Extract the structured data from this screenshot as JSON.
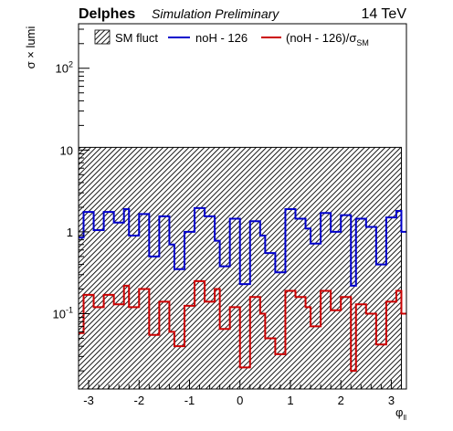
{
  "header": {
    "experiment": "Delphes",
    "status": "Simulation Preliminary",
    "energy": "14 TeV"
  },
  "chart_data": {
    "type": "histogram",
    "xlabel": "φ",
    "xlabel_sub": "ll",
    "ylabel": "σ × lumi",
    "log_y": true,
    "xlim": [
      -3.2,
      3.3
    ],
    "ylim": [
      0.012,
      350
    ],
    "x_ticks": [
      -3,
      -2,
      -1,
      0,
      1,
      2,
      3
    ],
    "x_tick_labels": [
      "-3",
      "-2",
      "-1",
      "0",
      "1",
      "2",
      "3"
    ],
    "y_ticks": [
      0.1,
      1,
      10,
      100
    ],
    "y_tick_labels": [
      {
        "base": "10",
        "sup": "-1"
      },
      {
        "base": "1",
        "sup": ""
      },
      {
        "base": "10",
        "sup": ""
      },
      {
        "base": "10",
        "sup": "2"
      }
    ],
    "legend": {
      "placement": "top",
      "entries": [
        {
          "label": "SM fluct",
          "style": "hatched-fill"
        },
        {
          "label": "noH - 126",
          "style": "line",
          "color": "#0000cc"
        },
        {
          "label": "(noH - 126)/σ",
          "sub": "SM",
          "style": "line",
          "color": "#cc0000"
        }
      ]
    },
    "bin_edges": [
      -3.2,
      -3.1,
      -2.9,
      -2.7,
      -2.5,
      -2.3,
      -2.2,
      -2.0,
      -1.8,
      -1.6,
      -1.4,
      -1.3,
      -1.1,
      -0.9,
      -0.7,
      -0.5,
      -0.4,
      -0.2,
      0.0,
      0.2,
      0.4,
      0.5,
      0.7,
      0.9,
      1.1,
      1.3,
      1.4,
      1.6,
      1.8,
      2.0,
      2.2,
      2.3,
      2.5,
      2.7,
      2.9,
      3.1,
      3.2,
      3.3
    ],
    "series": [
      {
        "name": "SM fluct",
        "color": "#000000",
        "values": [
          10.8,
          10.8,
          10.8,
          10.8,
          10.8,
          10.8,
          10.8,
          10.8,
          10.8,
          10.8,
          10.8,
          10.8,
          10.8,
          10.8,
          10.8,
          10.8,
          10.8,
          10.8,
          10.8,
          10.8,
          10.8,
          10.8,
          10.8,
          10.8,
          10.8,
          10.8,
          10.8,
          10.8,
          10.8,
          10.8,
          10.8,
          10.8,
          10.8,
          10.8,
          10.8,
          10.8,
          0.012
        ]
      },
      {
        "name": "noH - 126",
        "color": "#0000cc",
        "values": [
          0.85,
          1.75,
          1.05,
          1.75,
          1.3,
          1.9,
          0.9,
          1.65,
          0.5,
          1.55,
          0.7,
          0.35,
          1.0,
          1.95,
          1.55,
          0.78,
          0.38,
          1.45,
          0.23,
          1.35,
          0.9,
          0.55,
          0.32,
          1.9,
          1.45,
          1.1,
          0.72,
          1.7,
          1.0,
          1.6,
          0.22,
          1.45,
          1.15,
          0.4,
          1.5,
          1.8,
          1.0
        ]
      },
      {
        "name": "(noH - 126)/σSM",
        "color": "#cc0000",
        "values": [
          0.058,
          0.17,
          0.12,
          0.17,
          0.13,
          0.22,
          0.12,
          0.2,
          0.055,
          0.14,
          0.06,
          0.04,
          0.125,
          0.25,
          0.14,
          0.2,
          0.065,
          0.12,
          0.022,
          0.16,
          0.1,
          0.05,
          0.032,
          0.19,
          0.16,
          0.12,
          0.07,
          0.19,
          0.11,
          0.16,
          0.02,
          0.13,
          0.1,
          0.042,
          0.14,
          0.19,
          0.1
        ]
      }
    ]
  }
}
